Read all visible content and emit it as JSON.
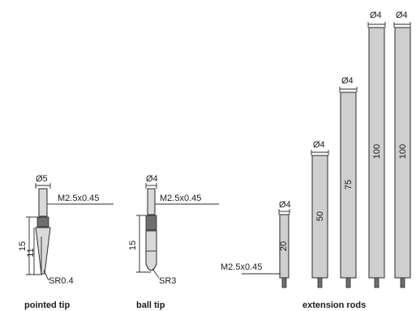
{
  "pointed_tip": {
    "diameter": "Ø5",
    "thread": "M2.5x0.45",
    "length_total": "15",
    "length_cone": "11",
    "radius": "SR0.4",
    "caption": "pointed tip"
  },
  "ball_tip": {
    "diameter": "Ø4",
    "thread": "M2.5x0.45",
    "length": "15",
    "radius": "SR3",
    "caption": "ball tip"
  },
  "extension_rods": {
    "caption": "extension rods",
    "thread": "M2.5x0.45",
    "rods": [
      {
        "diameter": "Ø4",
        "length": "20"
      },
      {
        "diameter": "Ø4",
        "length": "50"
      },
      {
        "diameter": "Ø4",
        "length": "75"
      },
      {
        "diameter": "Ø4",
        "length": "100"
      },
      {
        "diameter": "Ø4",
        "length": "100"
      }
    ]
  }
}
